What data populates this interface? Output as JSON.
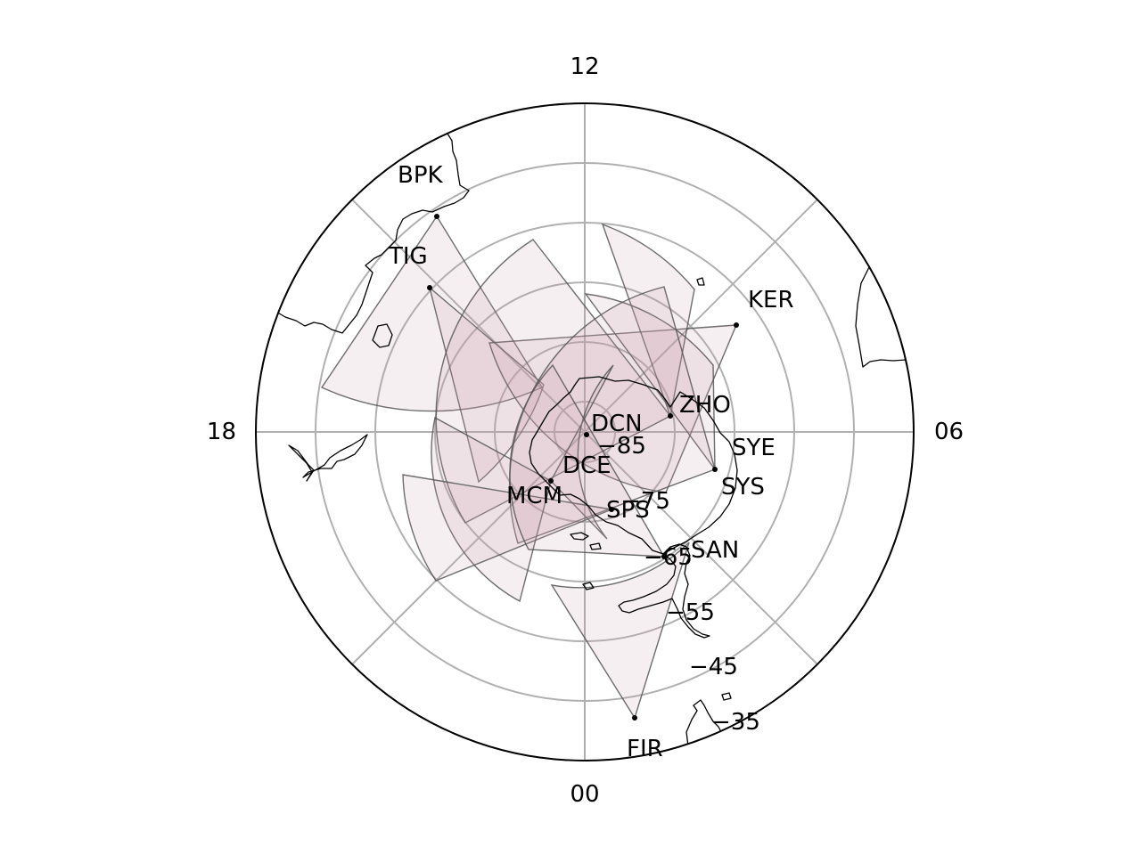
{
  "map": {
    "projection": "south-polar stereographic, magnetic local time",
    "mlt_labels": {
      "top": "12",
      "right": "06",
      "bottom": "00",
      "left": "18"
    },
    "latitude_labels": [
      "−85",
      "−75",
      "−65",
      "−55",
      "−45",
      "−35"
    ],
    "frame_color": "#000000",
    "grid_color": "#b0b0b0",
    "fov_fill_color": "#c89aa8",
    "stations": [
      {
        "code": "BPK"
      },
      {
        "code": "TIG"
      },
      {
        "code": "KER"
      },
      {
        "code": "ZHO"
      },
      {
        "code": "DCN"
      },
      {
        "code": "SYE"
      },
      {
        "code": "SYS"
      },
      {
        "code": "DCE"
      },
      {
        "code": "MCM"
      },
      {
        "code": "SPS"
      },
      {
        "code": "SAN"
      },
      {
        "code": "FIR"
      }
    ]
  }
}
